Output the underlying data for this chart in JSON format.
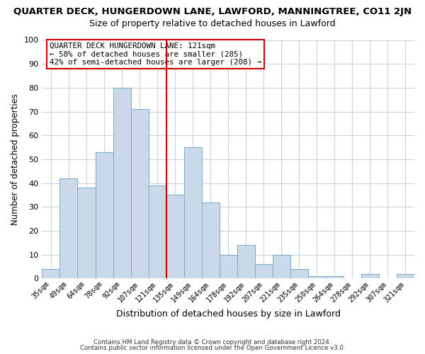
{
  "title": "QUARTER DECK, HUNGERDOWN LANE, LAWFORD, MANNINGTREE, CO11 2JN",
  "subtitle": "Size of property relative to detached houses in Lawford",
  "xlabel": "Distribution of detached houses by size in Lawford",
  "ylabel": "Number of detached properties",
  "categories": [
    "35sqm",
    "49sqm",
    "64sqm",
    "78sqm",
    "92sqm",
    "107sqm",
    "121sqm",
    "135sqm",
    "149sqm",
    "164sqm",
    "178sqm",
    "192sqm",
    "207sqm",
    "221sqm",
    "235sqm",
    "250sqm",
    "264sqm",
    "278sqm",
    "292sqm",
    "307sqm",
    "321sqm"
  ],
  "values": [
    4,
    42,
    38,
    53,
    80,
    71,
    39,
    35,
    55,
    32,
    10,
    14,
    6,
    10,
    4,
    1,
    1,
    0,
    2,
    0,
    2
  ],
  "bar_color": "#c9d9ea",
  "bar_edge_color": "#7aaac8",
  "highlight_index": 6,
  "highlight_line_color": "#cc0000",
  "ylim": [
    0,
    100
  ],
  "yticks": [
    0,
    10,
    20,
    30,
    40,
    50,
    60,
    70,
    80,
    90,
    100
  ],
  "grid_color": "#c8d4e0",
  "background_color": "#ffffff",
  "annotation_title": "QUARTER DECK HUNGERDOWN LANE: 121sqm",
  "annotation_line1": "← 58% of detached houses are smaller (285)",
  "annotation_line2": "42% of semi-detached houses are larger (208) →",
  "footer1": "Contains HM Land Registry data © Crown copyright and database right 2024.",
  "footer2": "Contains public sector information licensed under the Open Government Licence v3.0."
}
